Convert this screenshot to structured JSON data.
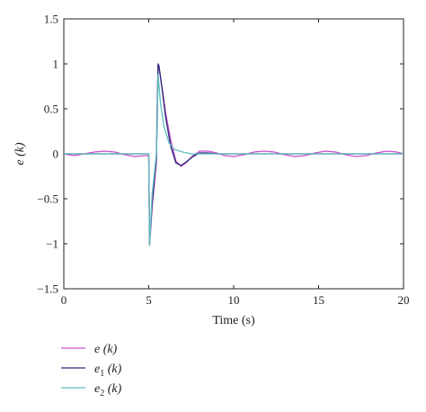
{
  "chart_data": {
    "type": "line",
    "title": "",
    "xlabel": "Time (s)",
    "ylabel": "e (k)",
    "xlim": [
      0,
      20
    ],
    "ylim": [
      -1.5,
      1.5
    ],
    "x_ticks": [
      0,
      5,
      10,
      15,
      20
    ],
    "y_ticks": [
      1.5,
      1,
      0.5,
      0,
      -0.5,
      -1,
      -1.5
    ],
    "x_tick_labels": [
      "0",
      "5",
      "10",
      "15",
      "20"
    ],
    "y_tick_labels": [
      "1.5",
      "1",
      "0.5",
      "0",
      "−0.5",
      "−1",
      "−1.5"
    ],
    "grid": false,
    "legend_position": "below-left",
    "series": [
      {
        "name": "e (k)",
        "legend_main": "e",
        "legend_sub": "",
        "legend_arg": " (k)",
        "color": "#cc4fcc",
        "x": [
          0,
          0.6,
          1.2,
          1.8,
          2.4,
          3.0,
          3.6,
          4.2,
          4.8,
          5.0,
          5.05,
          5.2,
          5.45,
          5.55,
          5.6,
          5.8,
          6.0,
          6.3,
          6.6,
          6.9,
          7.2,
          7.6,
          8.0,
          8.5,
          9.0,
          9.5,
          10.0,
          10.6,
          11.2,
          11.8,
          12.4,
          13.0,
          13.6,
          14.2,
          14.8,
          15.4,
          16.0,
          16.6,
          17.2,
          17.8,
          18.4,
          19.0,
          19.6,
          20.0
        ],
        "y": [
          0,
          -0.02,
          0.0,
          0.02,
          0.03,
          0.02,
          -0.01,
          -0.03,
          -0.02,
          -0.02,
          -1.02,
          -0.6,
          -0.1,
          0.98,
          0.97,
          0.72,
          0.45,
          0.15,
          -0.08,
          -0.14,
          -0.1,
          -0.02,
          0.03,
          0.03,
          0.01,
          -0.02,
          -0.03,
          -0.01,
          0.02,
          0.03,
          0.02,
          -0.01,
          -0.03,
          -0.02,
          0.01,
          0.03,
          0.02,
          -0.01,
          -0.03,
          -0.02,
          0.01,
          0.03,
          0.02,
          0.0
        ]
      },
      {
        "name": "e1 (k)",
        "legend_main": "e",
        "legend_sub": "1",
        "legend_arg": " (k)",
        "color": "#2a2a7a",
        "x": [
          0,
          2,
          4,
          4.9,
          5.0,
          5.05,
          5.2,
          5.45,
          5.55,
          5.6,
          5.8,
          6.0,
          6.3,
          6.6,
          6.9,
          7.2,
          7.6,
          8.0,
          8.5,
          9.0,
          10.0,
          12,
          14,
          16,
          18,
          20
        ],
        "y": [
          0,
          0,
          0,
          0,
          0,
          -1.0,
          -0.55,
          -0.05,
          1.0,
          0.98,
          0.7,
          0.4,
          0.08,
          -0.1,
          -0.13,
          -0.09,
          -0.03,
          0.01,
          0.01,
          0.0,
          0,
          0,
          0,
          0,
          0,
          0
        ]
      },
      {
        "name": "e2 (k)",
        "legend_main": "e",
        "legend_sub": "2",
        "legend_arg": " (k)",
        "color": "#5fbfbf",
        "x": [
          0,
          2,
          4,
          4.9,
          5.0,
          5.05,
          5.2,
          5.45,
          5.5,
          5.55,
          5.7,
          5.9,
          6.2,
          6.5,
          7.0,
          7.5,
          8.0,
          9.0,
          10.0,
          12,
          14,
          16,
          18,
          20
        ],
        "y": [
          0,
          0,
          0,
          0,
          0,
          -1.02,
          -0.45,
          0.0,
          0.3,
          0.88,
          0.55,
          0.3,
          0.12,
          0.05,
          0.02,
          0.0,
          0,
          0,
          0,
          0,
          0,
          0,
          0,
          0
        ]
      }
    ]
  }
}
